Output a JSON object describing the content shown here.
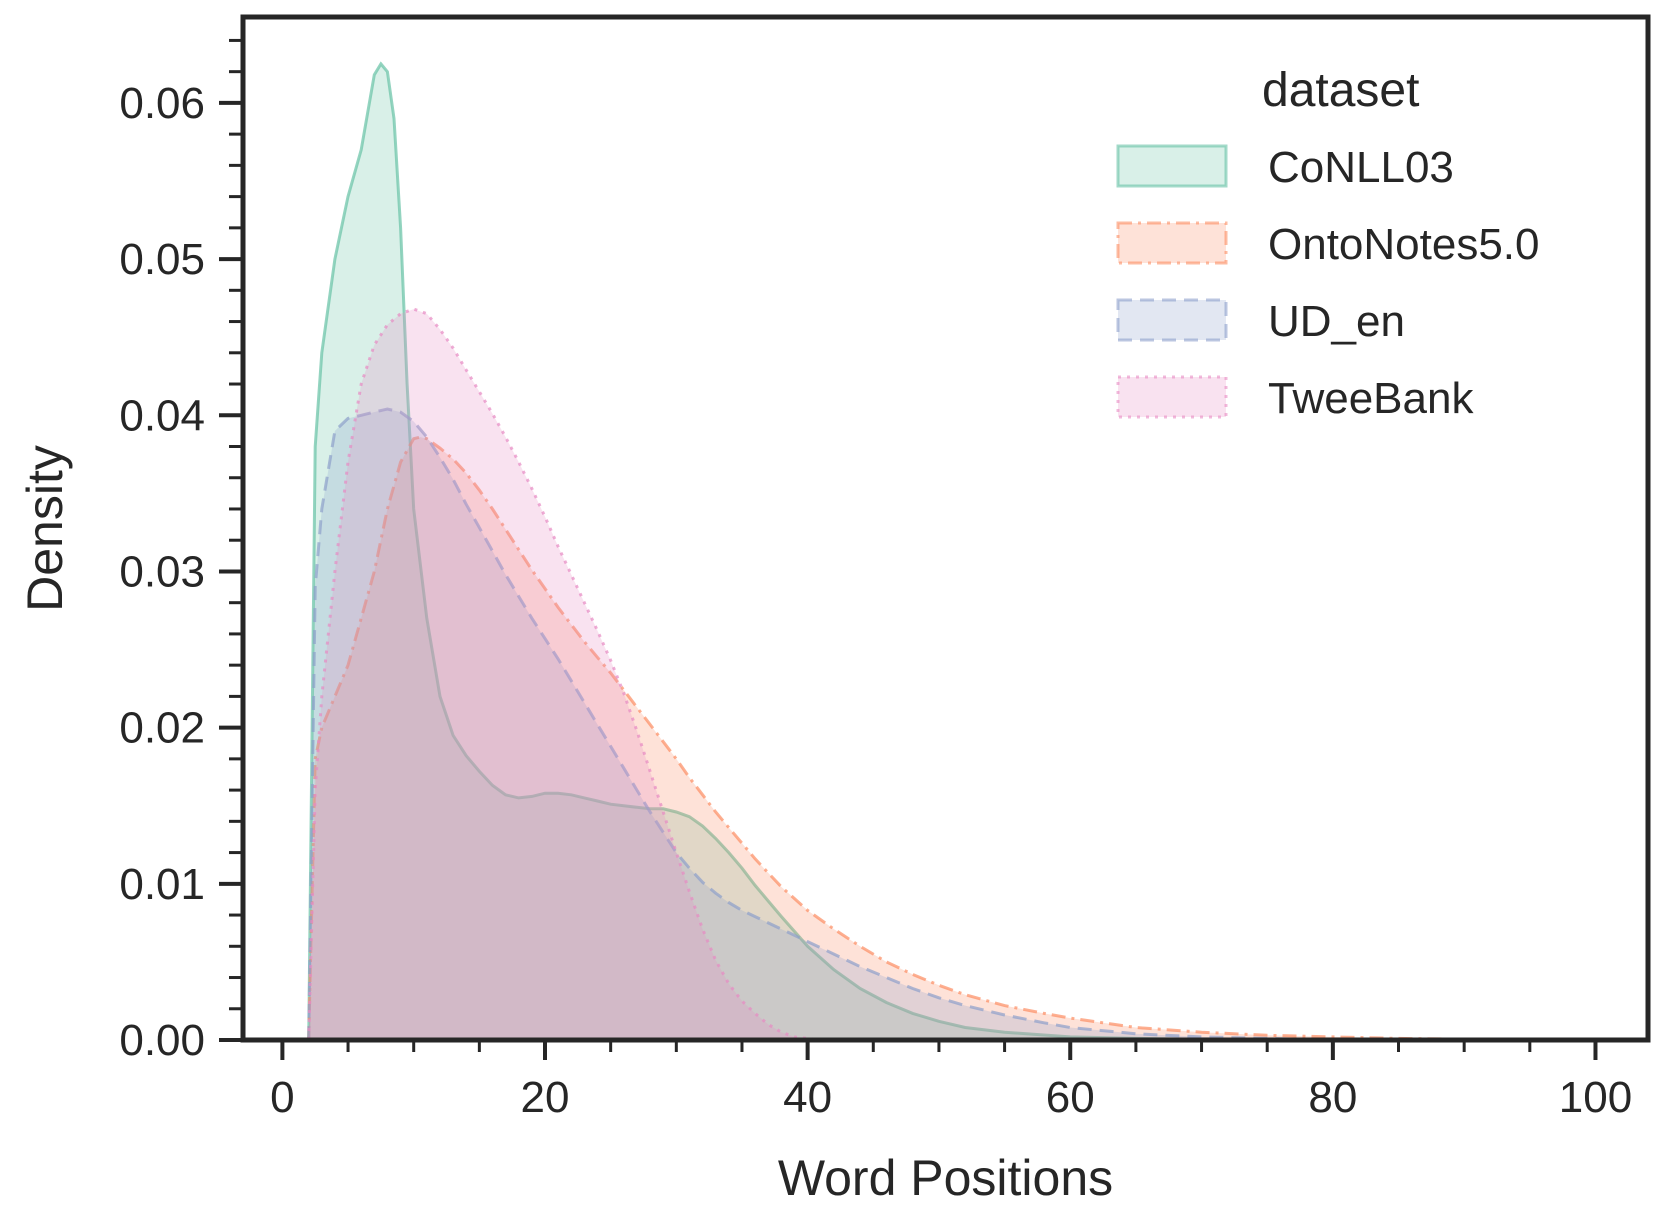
{
  "chart_data": {
    "type": "area",
    "title": "",
    "xlabel": "Word Positions",
    "ylabel": "Density",
    "xlim": [
      -3,
      104
    ],
    "ylim": [
      0,
      0.0655
    ],
    "xticks": [
      0,
      20,
      40,
      60,
      80,
      100
    ],
    "xtick_labels": [
      "0",
      "20",
      "40",
      "60",
      "80",
      "100"
    ],
    "yticks": [
      0.0,
      0.01,
      0.02,
      0.03,
      0.04,
      0.05,
      0.06
    ],
    "ytick_labels": [
      "0.00",
      "0.01",
      "0.02",
      "0.03",
      "0.04",
      "0.05",
      "0.06"
    ],
    "x_minor_step": 5,
    "y_minor_step": 0.002,
    "grid": false,
    "legend": {
      "title": "dataset",
      "position": "top-right"
    },
    "series": [
      {
        "name": "CoNLL03",
        "color": "#66c2a5",
        "line_style": "solid",
        "x": [
          2,
          2.5,
          3,
          4,
          5,
          6,
          7,
          7.5,
          8,
          8.5,
          9,
          9.5,
          10,
          11,
          12,
          13,
          14,
          15,
          16,
          17,
          18,
          19,
          20,
          21,
          22,
          23,
          24,
          25,
          26,
          27,
          28,
          29,
          30,
          31,
          32,
          33,
          34,
          35,
          36,
          37,
          38,
          40,
          42,
          44,
          46,
          48,
          50,
          52,
          55,
          60,
          65,
          70,
          75,
          80,
          90,
          100
        ],
        "y": [
          0,
          0.038,
          0.044,
          0.05,
          0.054,
          0.057,
          0.0618,
          0.0625,
          0.062,
          0.059,
          0.052,
          0.042,
          0.034,
          0.027,
          0.022,
          0.0195,
          0.0182,
          0.0172,
          0.0163,
          0.0157,
          0.0155,
          0.0156,
          0.0158,
          0.0158,
          0.0157,
          0.0155,
          0.0153,
          0.0151,
          0.015,
          0.0149,
          0.0148,
          0.0148,
          0.0146,
          0.0143,
          0.0137,
          0.0129,
          0.012,
          0.011,
          0.0099,
          0.0089,
          0.0079,
          0.006,
          0.0045,
          0.0033,
          0.0024,
          0.0017,
          0.0012,
          0.0008,
          0.0005,
          0.0002,
          0.0001,
          5e-05,
          0,
          0,
          0,
          0
        ]
      },
      {
        "name": "OntoNotes5.0",
        "color": "#fc8d62",
        "line_style": "dashdot",
        "x": [
          2,
          2.5,
          3,
          4,
          5,
          6,
          7,
          8,
          9,
          10,
          10.5,
          11,
          12,
          13,
          14,
          15,
          16,
          17,
          18,
          19,
          20,
          21,
          22,
          23,
          24,
          25,
          26,
          27,
          28,
          29,
          30,
          31,
          32,
          33,
          34,
          35,
          36,
          37,
          38,
          40,
          42,
          44,
          46,
          48,
          50,
          52,
          55,
          58,
          60,
          65,
          70,
          75,
          80,
          85,
          90,
          100
        ],
        "y": [
          0,
          0.018,
          0.02,
          0.022,
          0.024,
          0.027,
          0.03,
          0.034,
          0.037,
          0.0385,
          0.0386,
          0.0385,
          0.0379,
          0.0372,
          0.0363,
          0.0352,
          0.034,
          0.0327,
          0.0314,
          0.0301,
          0.0289,
          0.0277,
          0.0266,
          0.0255,
          0.0245,
          0.0235,
          0.0224,
          0.0213,
          0.0202,
          0.0191,
          0.018,
          0.0168,
          0.0157,
          0.0146,
          0.0136,
          0.0126,
          0.0116,
          0.0107,
          0.0098,
          0.0083,
          0.0071,
          0.006,
          0.005,
          0.0042,
          0.0035,
          0.0029,
          0.0022,
          0.0017,
          0.0014,
          0.0008,
          0.0005,
          0.0003,
          0.0002,
          0.0001,
          5e-05,
          0
        ]
      },
      {
        "name": "UD_en",
        "color": "#8da0cb",
        "line_style": "dashed",
        "x": [
          2,
          2.5,
          3,
          4,
          5,
          6,
          7,
          8,
          9,
          10,
          11,
          12,
          13,
          14,
          15,
          16,
          17,
          18,
          19,
          20,
          21,
          22,
          23,
          24,
          25,
          26,
          27,
          28,
          29,
          30,
          31,
          32,
          33,
          34,
          35,
          36,
          37,
          38,
          40,
          42,
          44,
          46,
          48,
          50,
          52,
          55,
          58,
          60,
          65,
          70,
          75,
          80,
          90,
          100
        ],
        "y": [
          0,
          0.029,
          0.034,
          0.039,
          0.0398,
          0.04,
          0.0402,
          0.0404,
          0.0402,
          0.0396,
          0.0386,
          0.0373,
          0.0359,
          0.0343,
          0.0328,
          0.0313,
          0.0298,
          0.0284,
          0.027,
          0.0257,
          0.0244,
          0.023,
          0.0216,
          0.0202,
          0.0188,
          0.0174,
          0.016,
          0.0146,
          0.0133,
          0.012,
          0.011,
          0.0101,
          0.0094,
          0.0088,
          0.0083,
          0.0079,
          0.0075,
          0.0071,
          0.0063,
          0.0055,
          0.0047,
          0.004,
          0.0033,
          0.0027,
          0.0022,
          0.0016,
          0.0011,
          0.0008,
          0.0004,
          0.0002,
          0.0001,
          0,
          0,
          0
        ]
      },
      {
        "name": "TweeBank",
        "color": "#e78ac3",
        "line_style": "dotted",
        "x": [
          2,
          2.5,
          3,
          4,
          5,
          6,
          7,
          8,
          9,
          10,
          11,
          12,
          13,
          14,
          15,
          16,
          17,
          18,
          19,
          20,
          21,
          22,
          23,
          24,
          25,
          26,
          27,
          28,
          29,
          30,
          31,
          32,
          33,
          34,
          35,
          36,
          37,
          38,
          39,
          40,
          41,
          42,
          45,
          50,
          60,
          80,
          100
        ],
        "y": [
          0,
          0.016,
          0.022,
          0.03,
          0.037,
          0.042,
          0.0445,
          0.0458,
          0.0465,
          0.0468,
          0.0465,
          0.0455,
          0.0443,
          0.0429,
          0.0415,
          0.0401,
          0.0386,
          0.037,
          0.0353,
          0.0335,
          0.0316,
          0.0298,
          0.028,
          0.0262,
          0.0243,
          0.0222,
          0.0198,
          0.0172,
          0.0146,
          0.012,
          0.0095,
          0.0071,
          0.0051,
          0.0036,
          0.0025,
          0.0017,
          0.001,
          0.0005,
          0.0002,
          0.0001,
          0,
          0,
          0,
          0,
          0,
          0,
          0
        ]
      }
    ]
  }
}
